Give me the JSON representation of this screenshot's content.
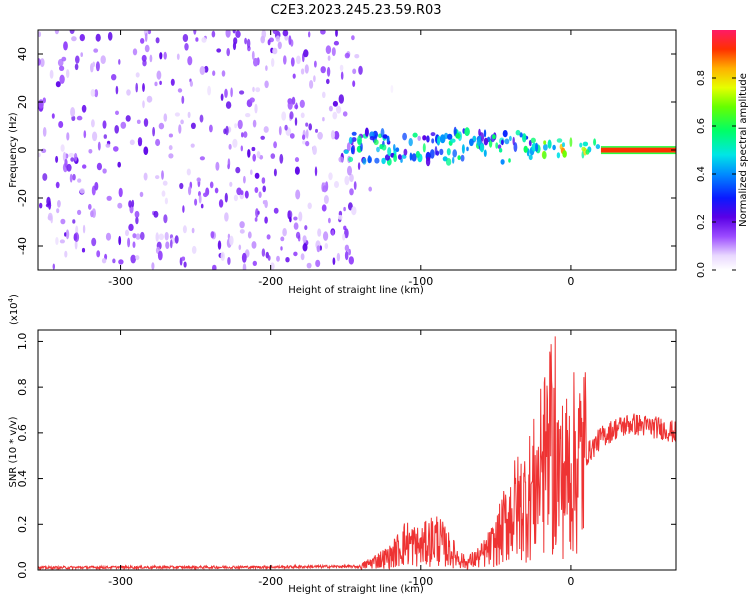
{
  "title": "C2E3.2023.245.23.59.R03",
  "chart_data": [
    {
      "type": "heatmap",
      "title": "C2E3.2023.245.23.59.R03",
      "xlabel": "Height of straight line (km)",
      "ylabel": "Frequency (Hz)",
      "xlim": [
        -355,
        70
      ],
      "ylim": [
        -50,
        50
      ],
      "xticks": [
        -300,
        -200,
        -100,
        0
      ],
      "yticks": [
        -40,
        -20,
        0,
        20,
        40
      ],
      "colorbar": {
        "label": "Normalized spectral amplitude",
        "range": [
          0,
          1
        ],
        "ticks": [
          "0.0",
          "0.2",
          "0.4",
          "0.6",
          "0.8"
        ],
        "colormap": "rainbow"
      },
      "regions": [
        {
          "x": [
            -355,
            -140
          ],
          "y": [
            -50,
            50
          ],
          "level_range": [
            0.05,
            0.22
          ],
          "pattern": "scattered broadband noise"
        },
        {
          "x": [
            -140,
            -100
          ],
          "y": [
            -22,
            28
          ],
          "level_range": [
            0.0,
            0.12
          ],
          "pattern": "sparse noise"
        },
        {
          "x": [
            -150,
            -20
          ],
          "y": [
            -5,
            8
          ],
          "level_range": [
            0.2,
            0.6
          ],
          "pattern": "signal core"
        },
        {
          "x": [
            -20,
            20
          ],
          "y": [
            -3,
            4
          ],
          "level_range": [
            0.4,
            0.9
          ],
          "pattern": "signal core"
        },
        {
          "x": [
            20,
            70
          ],
          "y": [
            -1,
            1
          ],
          "level_range": [
            0.9,
            1.0
          ],
          "pattern": "narrow line"
        }
      ]
    },
    {
      "type": "line",
      "xlabel": "Height of straight line (km)",
      "ylabel": "SNR (10 * v/v)",
      "yscale_label": "(x10",
      "yscale_exp": "4",
      "xlim": [
        -355,
        70
      ],
      "ylim": [
        0,
        1.05
      ],
      "xticks": [
        -300,
        -200,
        -100,
        0
      ],
      "yticks": [
        0.0,
        0.2,
        0.4,
        0.6,
        0.8,
        1.0
      ],
      "color": "#ee3333",
      "series": [
        {
          "x": [
            -355,
            -300,
            -250,
            -200,
            -160,
            -140,
            -130,
            -120,
            -110,
            -100,
            -90,
            -80,
            -70,
            -60,
            -50,
            -40,
            -30,
            -25,
            -20,
            -15,
            -10,
            -5,
            0,
            10,
            20,
            30,
            40,
            50,
            60,
            70
          ],
          "values": [
            0.01,
            0.012,
            0.012,
            0.013,
            0.015,
            0.015,
            0.04,
            0.06,
            0.12,
            0.1,
            0.14,
            0.08,
            0.03,
            0.06,
            0.12,
            0.25,
            0.3,
            0.35,
            0.42,
            0.5,
            0.45,
            0.4,
            0.45,
            0.5,
            0.58,
            0.62,
            0.64,
            0.63,
            0.62,
            0.6
          ]
        }
      ]
    }
  ]
}
